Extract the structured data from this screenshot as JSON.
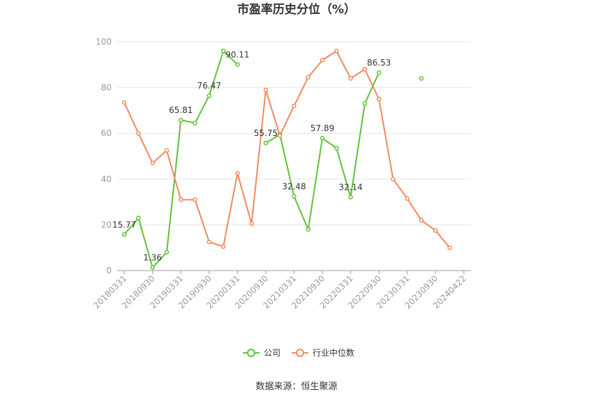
{
  "chart_data": {
    "type": "line",
    "title": "市盈率历史分位（%）",
    "source": "数据来源：恒生聚源",
    "ylim": [
      0,
      100
    ],
    "y_ticks": [
      "0",
      "20",
      "40",
      "60",
      "80",
      "100"
    ],
    "x_tick_labels": [
      "20180331",
      "20180930",
      "20190331",
      "20190930",
      "20200331",
      "20200930",
      "20210331",
      "20210930",
      "20220331",
      "20220930",
      "20230331",
      "20230930",
      "20240422"
    ],
    "grid": true,
    "legend_position": "bottom",
    "series": [
      {
        "name": "公司",
        "color": "#5ec234",
        "values": [
          15.77,
          23.0,
          1.36,
          8.0,
          65.81,
          64.5,
          76.47,
          96.0,
          90.11,
          null,
          55.75,
          59.5,
          32.48,
          18.0,
          57.89,
          53.5,
          32.14,
          73.0,
          86.53,
          null,
          null,
          84.0,
          null,
          null,
          null
        ]
      },
      {
        "name": "行业中位数",
        "color": "#f0895e",
        "values": [
          73.5,
          60.0,
          47.0,
          52.5,
          31.0,
          31.0,
          12.5,
          10.5,
          42.5,
          20.5,
          79.0,
          59.0,
          72.0,
          84.5,
          92.0,
          96.0,
          84.0,
          88.0,
          75.0,
          40.0,
          31.5,
          22.0,
          17.5,
          10.0,
          null
        ]
      }
    ],
    "data_labels": [
      {
        "index": 0,
        "text": "15.77"
      },
      {
        "index": 2,
        "text": "1.36"
      },
      {
        "index": 4,
        "text": "65.81"
      },
      {
        "index": 6,
        "text": "76.47"
      },
      {
        "index": 8,
        "text": "90.11"
      },
      {
        "index": 10,
        "text": "55.75"
      },
      {
        "index": 12,
        "text": "32.48"
      },
      {
        "index": 14,
        "text": "57.89"
      },
      {
        "index": 16,
        "text": "32.14"
      },
      {
        "index": 18,
        "text": "86.53"
      }
    ]
  }
}
